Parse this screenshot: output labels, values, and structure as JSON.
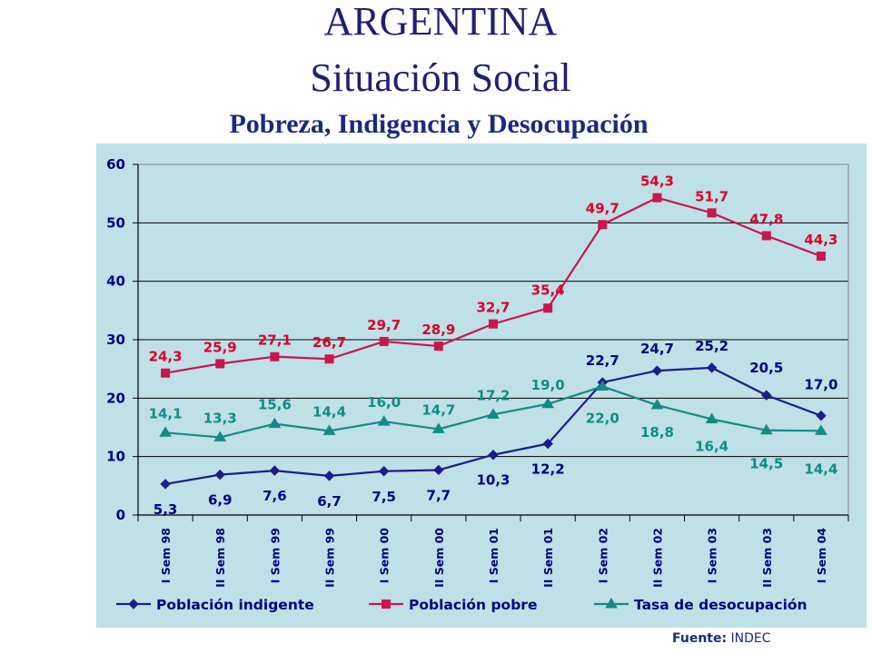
{
  "header": {
    "title": "ARGENTINA",
    "subtitle": "Situación Social"
  },
  "chart_data": {
    "type": "line",
    "title": "Pobreza, Indigencia y Desocupación",
    "xlabel": "",
    "ylabel": "",
    "ylim": [
      0,
      60
    ],
    "yticks": [
      "0",
      "10",
      "20",
      "30",
      "40",
      "50",
      "60"
    ],
    "grid": "horizontal",
    "legend_position": "bottom",
    "categories": [
      "I Sem 98",
      "II Sem 98",
      "I Sem 99",
      "II Sem 99",
      "I Sem 00",
      "II Sem 00",
      "I Sem 01",
      "II Sem 01",
      "I Sem 02",
      "II Sem 02",
      "I Sem 03",
      "II Sem 03",
      "I Sem 04"
    ],
    "series": [
      {
        "name": "Población indigente",
        "color": "#1c1c8c",
        "marker": "diamond",
        "values": [
          5.3,
          6.9,
          7.6,
          6.7,
          7.5,
          7.7,
          10.3,
          12.2,
          22.7,
          24.7,
          25.2,
          20.5,
          17.0
        ],
        "labels": [
          "5,3",
          "6,9",
          "7,6",
          "6,7",
          "7,5",
          "7,7",
          "10,3",
          "12,2",
          "22,7",
          "24,7",
          "25,2",
          "20,5",
          "17,0"
        ],
        "label_color": "#000080"
      },
      {
        "name": "Población pobre",
        "color": "#c8174e",
        "marker": "square",
        "values": [
          24.3,
          25.9,
          27.1,
          26.7,
          29.7,
          28.9,
          32.7,
          35.4,
          49.7,
          54.3,
          51.7,
          47.8,
          44.3
        ],
        "labels": [
          "24,3",
          "25,9",
          "27,1",
          "26,7",
          "29,7",
          "28,9",
          "32,7",
          "35,4",
          "49,7",
          "54,3",
          "51,7",
          "47,8",
          "44,3"
        ],
        "label_color": "#d8002a"
      },
      {
        "name": "Tasa de desocupación",
        "color": "#148a86",
        "marker": "triangle",
        "values": [
          14.1,
          13.3,
          15.6,
          14.4,
          16.0,
          14.7,
          17.2,
          19.0,
          22.0,
          18.8,
          16.4,
          14.5,
          14.4
        ],
        "labels": [
          "14,1",
          "13,3",
          "15,6",
          "14,4",
          "16,0",
          "14,7",
          "17,2",
          "19,0",
          "22,0",
          "18,8",
          "16,4",
          "14,5",
          "14,4"
        ],
        "label_color": "#0f8c88"
      }
    ]
  },
  "footer": {
    "source_label": "Fuente:",
    "source_value": "INDEC"
  }
}
